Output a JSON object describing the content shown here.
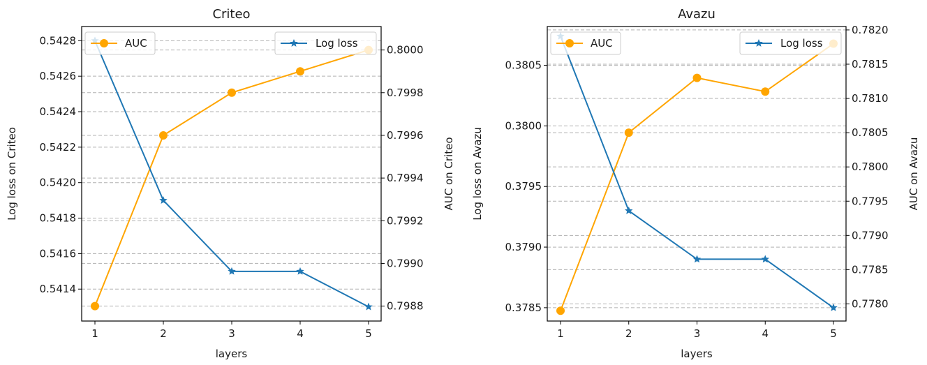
{
  "chart_data": [
    {
      "type": "line",
      "title": "Criteo",
      "xlabel": "layers",
      "ylabel_left": "Log loss on Criteo",
      "ylabel_right": "AUC on Criteo",
      "x": [
        1,
        2,
        3,
        4,
        5
      ],
      "x_ticks": [
        "1",
        "2",
        "3",
        "4",
        "5"
      ],
      "ylim_left": [
        0.54122,
        0.54288
      ],
      "ylim_right": [
        0.79873,
        0.80011
      ],
      "y_ticks_left": [
        "0.5414",
        "0.5416",
        "0.5418",
        "0.5420",
        "0.5422",
        "0.5424",
        "0.5426",
        "0.5428"
      ],
      "y_ticks_right": [
        "0.7988",
        "0.7990",
        "0.7992",
        "0.7994",
        "0.7996",
        "0.7998",
        "0.8000"
      ],
      "series": [
        {
          "name": "AUC",
          "axis": "right",
          "color": "#ffa500",
          "marker": "circle",
          "values": [
            0.7988,
            0.7996,
            0.7998,
            0.7999,
            0.8
          ]
        },
        {
          "name": "Log loss",
          "axis": "left",
          "color": "#1f77b4",
          "marker": "star",
          "values": [
            0.5428,
            0.5419,
            0.5415,
            0.5415,
            0.5413
          ]
        }
      ],
      "grid": "horizontal dashed",
      "legend": [
        "upper left (AUC)",
        "upper right (Log loss)"
      ]
    },
    {
      "type": "line",
      "title": "Avazu",
      "xlabel": "layers",
      "ylabel_left": "Log loss on Avazu",
      "ylabel_right": "AUC on Avazu",
      "x": [
        1,
        2,
        3,
        4,
        5
      ],
      "x_ticks": [
        "1",
        "2",
        "3",
        "4",
        "5"
      ],
      "ylim_left": [
        0.37839,
        0.38082
      ],
      "ylim_right": [
        0.77775,
        0.78205
      ],
      "y_ticks_left": [
        "0.3785",
        "0.3790",
        "0.3795",
        "0.3800",
        "0.3805"
      ],
      "y_ticks_right": [
        "0.7780",
        "0.7785",
        "0.7790",
        "0.7795",
        "0.7800",
        "0.7805",
        "0.7810",
        "0.7815",
        "0.7820"
      ],
      "series": [
        {
          "name": "AUC",
          "axis": "right",
          "color": "#ffa500",
          "marker": "circle",
          "values": [
            0.7779,
            0.7805,
            0.7813,
            0.7811,
            0.7818
          ]
        },
        {
          "name": "Log loss",
          "axis": "left",
          "color": "#1f77b4",
          "marker": "star",
          "values": [
            0.38074,
            0.3793,
            0.3789,
            0.3789,
            0.3785
          ]
        }
      ],
      "grid": "horizontal dashed",
      "legend": [
        "upper left (AUC)",
        "upper right (Log loss)"
      ]
    }
  ]
}
